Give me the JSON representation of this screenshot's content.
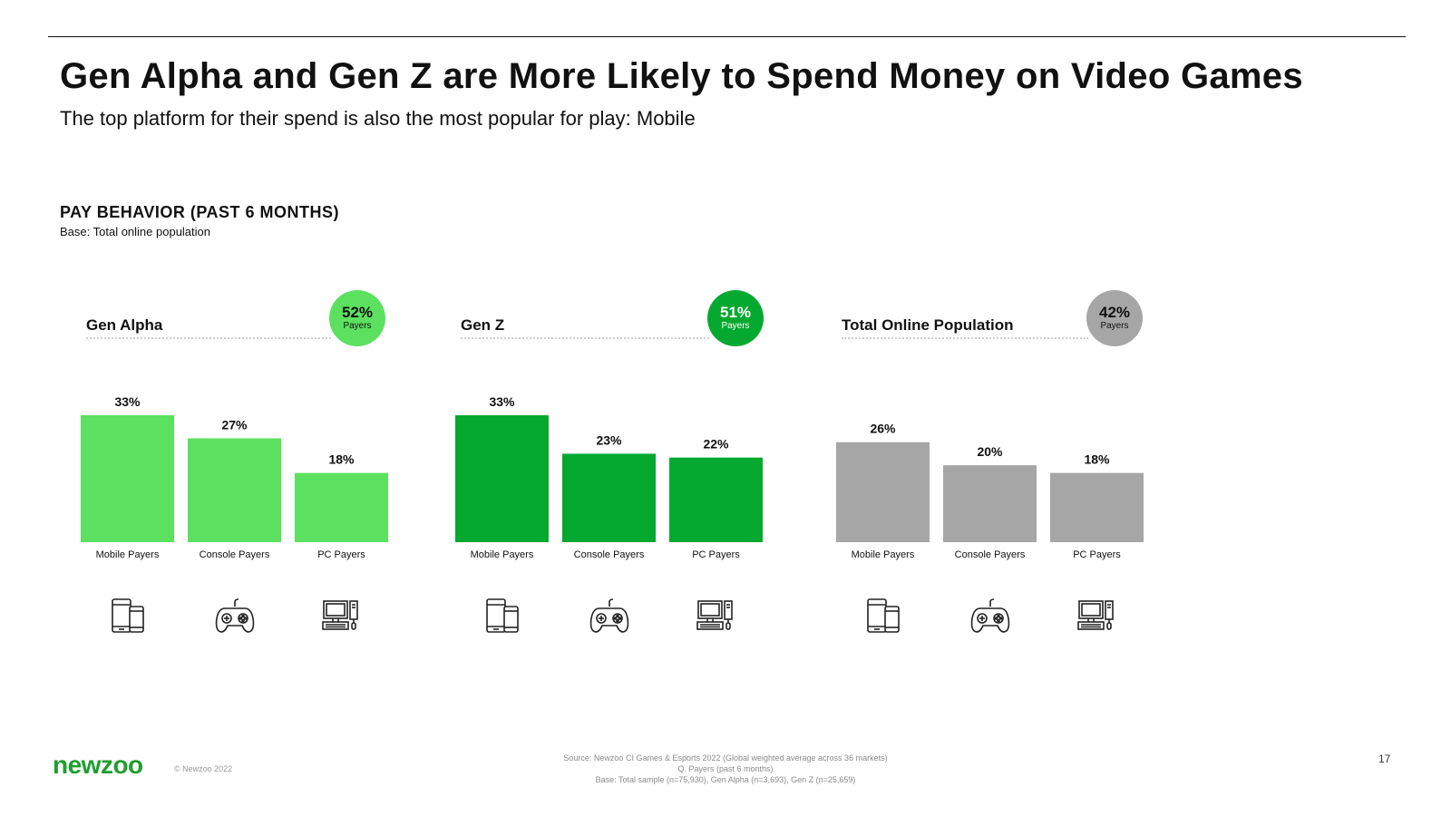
{
  "title": "Gen Alpha and Gen Z are More Likely to Spend Money on Video Games",
  "subtitle": "The top platform for their spend is also the most popular for play: Mobile",
  "section": {
    "title": "PAY BEHAVIOR (PAST 6 MONTHS)",
    "base": "Base: Total online population"
  },
  "colors": {
    "gen_alpha": "#5ce05f",
    "gen_z": "#05a92f",
    "total": "#a6a6a6"
  },
  "chart_data": [
    {
      "type": "bar",
      "group": "Gen Alpha",
      "badge": {
        "value": "52%",
        "label": "Payers"
      },
      "categories": [
        "Mobile Payers",
        "Console Payers",
        "PC Payers"
      ],
      "values": [
        33,
        27,
        18
      ],
      "value_labels": [
        "33%",
        "27%",
        "18%"
      ],
      "color": "#5ce05f",
      "ylim": [
        0,
        33
      ]
    },
    {
      "type": "bar",
      "group": "Gen Z",
      "badge": {
        "value": "51%",
        "label": "Payers"
      },
      "categories": [
        "Mobile Payers",
        "Console Payers",
        "PC Payers"
      ],
      "values": [
        33,
        23,
        22
      ],
      "value_labels": [
        "33%",
        "23%",
        "22%"
      ],
      "color": "#05a92f",
      "ylim": [
        0,
        33
      ]
    },
    {
      "type": "bar",
      "group": "Total Online Population",
      "badge": {
        "value": "42%",
        "label": "Payers"
      },
      "categories": [
        "Mobile Payers",
        "Console Payers",
        "PC Payers"
      ],
      "values": [
        26,
        20,
        18
      ],
      "value_labels": [
        "26%",
        "20%",
        "18%"
      ],
      "color": "#a6a6a6",
      "ylim": [
        0,
        33
      ]
    }
  ],
  "icons": [
    "mobile-devices-icon",
    "gamepad-icon",
    "desktop-computer-icon"
  ],
  "footer": {
    "logo": "newzoo",
    "copyright": "© Newzoo 2022",
    "source_lines": [
      "Source: Newzoo CI Games & Esports 2022 (Global weighted average across 36 markets)",
      "Q. Payers (past 6 months)",
      "Base: Total sample (n=75,930), Gen Alpha (n=3,693), Gen Z (n=25,659)"
    ],
    "page_number": "17"
  }
}
